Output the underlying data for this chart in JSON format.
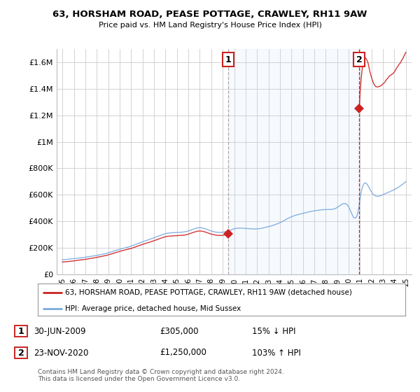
{
  "title": "63, HORSHAM ROAD, PEASE POTTAGE, CRAWLEY, RH11 9AW",
  "subtitle": "Price paid vs. HM Land Registry's House Price Index (HPI)",
  "ylabel_ticks": [
    "£0",
    "£200K",
    "£400K",
    "£600K",
    "£800K",
    "£1M",
    "£1.2M",
    "£1.4M",
    "£1.6M"
  ],
  "ylabel_values": [
    0,
    200000,
    400000,
    600000,
    800000,
    1000000,
    1200000,
    1400000,
    1600000
  ],
  "ylim": [
    0,
    1700000
  ],
  "xlim_start": 1994.5,
  "xlim_end": 2025.5,
  "hpi_color": "#7aaadd",
  "price_color": "#cc2222",
  "transaction1_x": 2009.5,
  "transaction1_price": 305000,
  "transaction1_date": "30-JUN-2009",
  "transaction1_note": "15% ↓ HPI",
  "transaction2_x": 2020.92,
  "transaction2_price": 1250000,
  "transaction2_date": "23-NOV-2020",
  "transaction2_note": "103% ↑ HPI",
  "legend_label1": "63, HORSHAM ROAD, PEASE POTTAGE, CRAWLEY, RH11 9AW (detached house)",
  "legend_label2": "HPI: Average price, detached house, Mid Sussex",
  "footer": "Contains HM Land Registry data © Crown copyright and database right 2024.\nThis data is licensed under the Open Government Licence v3.0.",
  "background_color": "#ffffff",
  "grid_color": "#cccccc",
  "shade_color": "#ddeeff",
  "transaction2_vline_color": "#cc2222",
  "transaction1_vline_color": "#aaaaaa"
}
